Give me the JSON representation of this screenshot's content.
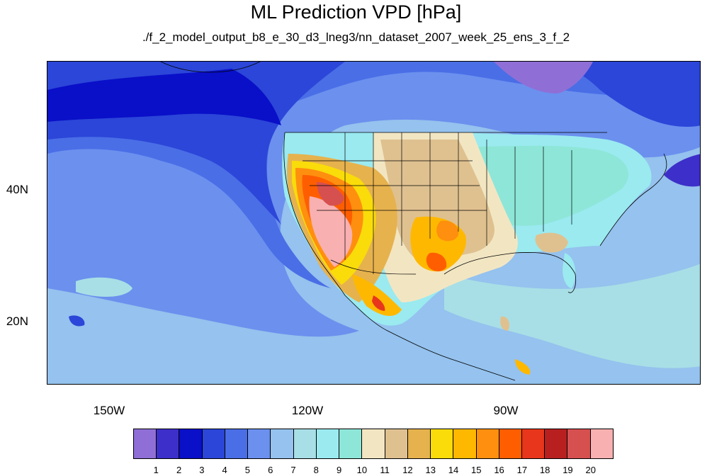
{
  "title": "ML Prediction VPD [hPa]",
  "subtitle": "./f_2_model_output_b8_e_30_d3_lneg3/nn_dataset_2007_week_25_ens_3_f_2",
  "map": {
    "type": "filled-contour-map",
    "region": "North Pacific and North America",
    "lat_labels": [
      "40N",
      "20N"
    ],
    "lon_labels": [
      "150W",
      "120W",
      "90W"
    ],
    "features": [
      "coastlines",
      "US state borders",
      "country borders"
    ]
  },
  "colorbar": {
    "labels": [
      "1",
      "2",
      "3",
      "4",
      "5",
      "6",
      "7",
      "8",
      "9",
      "10",
      "11",
      "12",
      "13",
      "14",
      "15",
      "16",
      "17",
      "18",
      "19",
      "20"
    ],
    "colors": [
      "#8f6fd6",
      "#3d2fc9",
      "#0a0fc8",
      "#2b46d8",
      "#4a6ee6",
      "#6b90ee",
      "#95c2ee",
      "#a8dfe6",
      "#9aeaf0",
      "#8ee6d8",
      "#f2e6c2",
      "#dfc190",
      "#e6b24e",
      "#f9dc0a",
      "#ffb800",
      "#ff8f0f",
      "#ff5e00",
      "#e8361c",
      "#b82020",
      "#d65050",
      "#f9b0b0"
    ]
  }
}
